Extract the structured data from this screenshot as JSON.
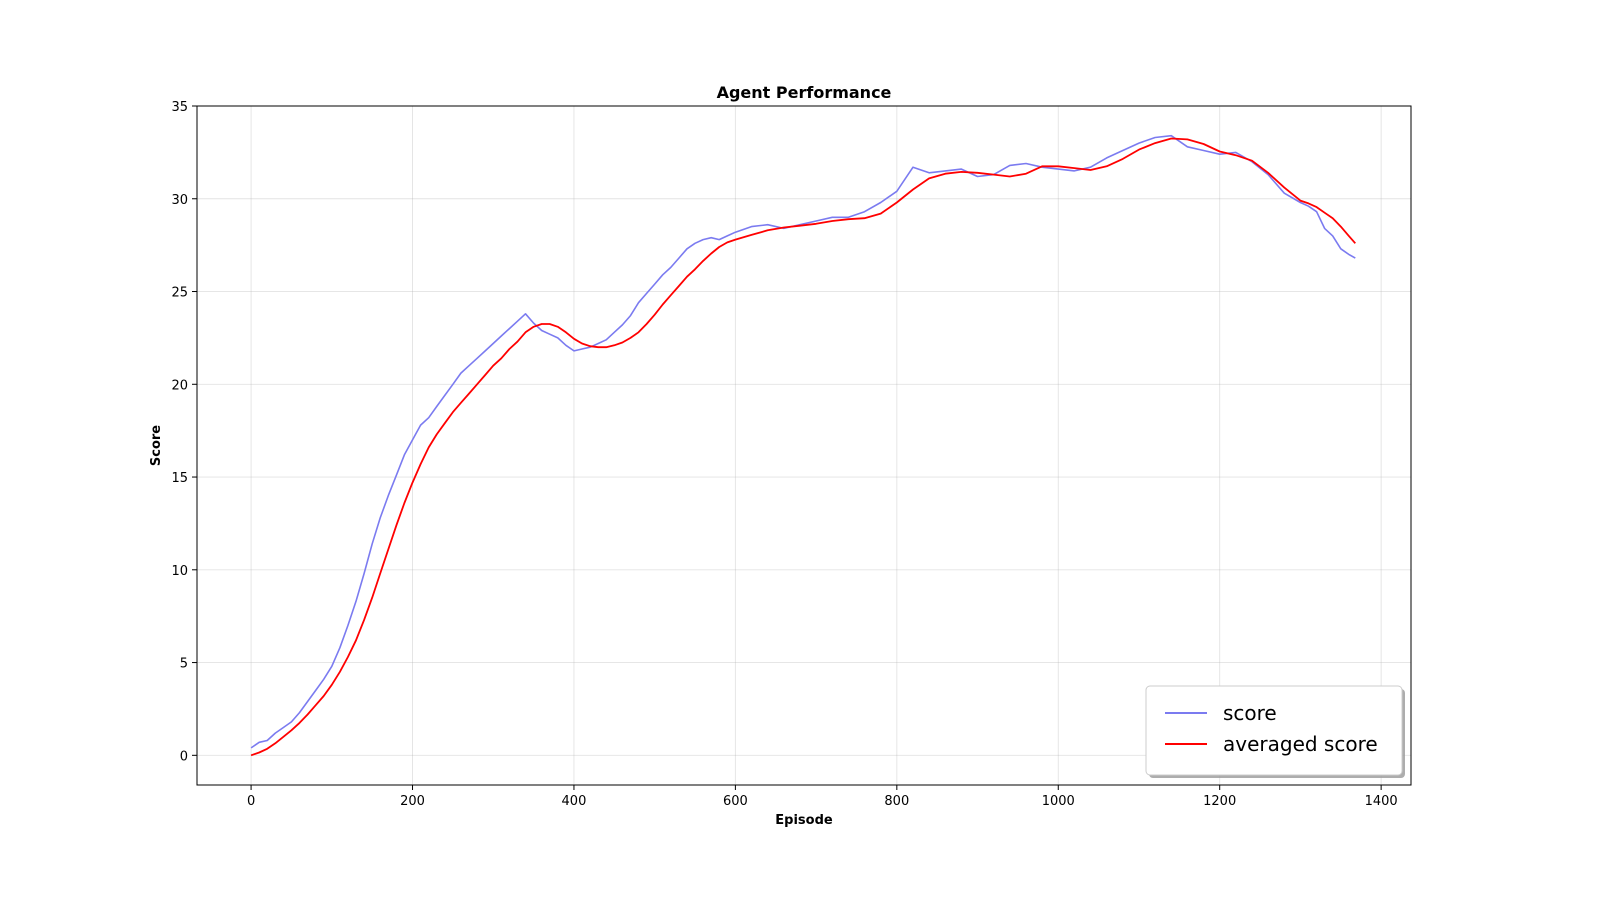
{
  "chart_data": {
    "type": "line",
    "title": "Agent Performance",
    "xlabel": "Episode",
    "ylabel": "Score",
    "xlim": [
      -67,
      1437
    ],
    "ylim": [
      -1.6,
      35
    ],
    "xticks": [
      0,
      200,
      400,
      600,
      800,
      1000,
      1200,
      1400
    ],
    "yticks": [
      0,
      5,
      10,
      15,
      20,
      25,
      30,
      35
    ],
    "grid": true,
    "legend_position": "lower-right",
    "series": [
      {
        "name": "score",
        "color": "#7b7bf0",
        "x": [
          0,
          10,
          20,
          30,
          40,
          50,
          60,
          70,
          80,
          90,
          100,
          110,
          120,
          130,
          140,
          150,
          160,
          170,
          180,
          190,
          200,
          210,
          220,
          230,
          240,
          250,
          260,
          270,
          280,
          290,
          300,
          310,
          320,
          330,
          340,
          350,
          360,
          370,
          380,
          390,
          400,
          410,
          420,
          430,
          440,
          450,
          460,
          470,
          480,
          490,
          500,
          510,
          520,
          530,
          540,
          550,
          560,
          570,
          580,
          590,
          600,
          620,
          640,
          660,
          680,
          700,
          720,
          740,
          760,
          780,
          800,
          820,
          840,
          860,
          880,
          900,
          920,
          940,
          960,
          980,
          1000,
          1020,
          1040,
          1060,
          1080,
          1100,
          1120,
          1140,
          1160,
          1180,
          1200,
          1220,
          1240,
          1260,
          1280,
          1300,
          1310,
          1320,
          1330,
          1340,
          1350,
          1360,
          1368
        ],
        "values": [
          0.4,
          0.7,
          0.8,
          1.2,
          1.5,
          1.8,
          2.3,
          2.9,
          3.5,
          4.1,
          4.8,
          5.8,
          7.0,
          8.3,
          9.8,
          11.4,
          12.8,
          14.0,
          15.1,
          16.2,
          17.0,
          17.8,
          18.2,
          18.8,
          19.4,
          20.0,
          20.6,
          21.0,
          21.4,
          21.8,
          22.2,
          22.6,
          23.0,
          23.4,
          23.8,
          23.3,
          22.9,
          22.7,
          22.5,
          22.1,
          21.8,
          21.9,
          22.0,
          22.2,
          22.4,
          22.8,
          23.2,
          23.7,
          24.4,
          24.9,
          25.4,
          25.9,
          26.3,
          26.8,
          27.3,
          27.6,
          27.8,
          27.9,
          27.8,
          28.0,
          28.2,
          28.5,
          28.6,
          28.4,
          28.6,
          28.8,
          29.0,
          29.0,
          29.3,
          29.8,
          30.4,
          31.7,
          31.4,
          31.5,
          31.6,
          31.2,
          31.3,
          31.8,
          31.9,
          31.7,
          31.6,
          31.5,
          31.7,
          32.2,
          32.6,
          33.0,
          33.3,
          33.4,
          32.8,
          32.6,
          32.4,
          32.5,
          32.0,
          31.3,
          30.3,
          29.8,
          29.6,
          29.3,
          28.4,
          28.0,
          27.3,
          27.0,
          26.8
        ]
      },
      {
        "name": "averaged score",
        "color": "#ff0000",
        "x": [
          0,
          10,
          20,
          30,
          40,
          50,
          60,
          70,
          80,
          90,
          100,
          110,
          120,
          130,
          140,
          150,
          160,
          170,
          180,
          190,
          200,
          210,
          220,
          230,
          240,
          250,
          260,
          270,
          280,
          290,
          300,
          310,
          320,
          330,
          340,
          350,
          360,
          370,
          380,
          390,
          400,
          410,
          420,
          430,
          440,
          450,
          460,
          470,
          480,
          490,
          500,
          510,
          520,
          530,
          540,
          550,
          560,
          570,
          580,
          590,
          600,
          620,
          640,
          660,
          680,
          700,
          720,
          740,
          760,
          780,
          800,
          820,
          840,
          860,
          880,
          900,
          920,
          940,
          960,
          980,
          1000,
          1020,
          1040,
          1060,
          1080,
          1100,
          1120,
          1140,
          1160,
          1180,
          1200,
          1220,
          1240,
          1260,
          1280,
          1300,
          1310,
          1320,
          1330,
          1340,
          1350,
          1360,
          1368
        ],
        "values": [
          0.0,
          0.15,
          0.35,
          0.65,
          1.0,
          1.35,
          1.75,
          2.2,
          2.7,
          3.2,
          3.8,
          4.5,
          5.3,
          6.2,
          7.3,
          8.5,
          9.8,
          11.1,
          12.4,
          13.6,
          14.7,
          15.7,
          16.6,
          17.3,
          17.9,
          18.5,
          19.0,
          19.5,
          20.0,
          20.5,
          21.0,
          21.4,
          21.9,
          22.3,
          22.8,
          23.1,
          23.25,
          23.25,
          23.1,
          22.8,
          22.45,
          22.2,
          22.05,
          22.0,
          22.0,
          22.1,
          22.25,
          22.5,
          22.8,
          23.25,
          23.75,
          24.3,
          24.8,
          25.3,
          25.8,
          26.2,
          26.65,
          27.05,
          27.4,
          27.65,
          27.8,
          28.05,
          28.3,
          28.45,
          28.55,
          28.65,
          28.8,
          28.9,
          28.95,
          29.2,
          29.8,
          30.5,
          31.1,
          31.35,
          31.45,
          31.4,
          31.3,
          31.2,
          31.35,
          31.75,
          31.75,
          31.65,
          31.55,
          31.75,
          32.15,
          32.65,
          33.0,
          33.25,
          33.2,
          32.95,
          32.55,
          32.35,
          32.05,
          31.4,
          30.6,
          29.9,
          29.75,
          29.55,
          29.25,
          28.95,
          28.5,
          28.0,
          27.6
        ]
      }
    ]
  }
}
